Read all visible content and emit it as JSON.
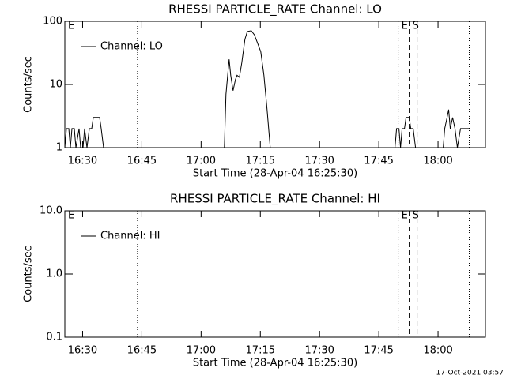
{
  "chart_data": [
    {
      "type": "line",
      "title": "RHESSI PARTICLE_RATE Channel: LO",
      "xlabel": "Start Time (28-Apr-04 16:25:30)",
      "ylabel": "Counts/sec",
      "log_y": true,
      "xlim": [
        985.5,
        1092
      ],
      "ylim": [
        1,
        100
      ],
      "yticks": [
        1,
        10,
        100
      ],
      "xticks": [
        {
          "value": 990,
          "label": "16:30"
        },
        {
          "value": 1005,
          "label": "16:45"
        },
        {
          "value": 1020,
          "label": "17:00"
        },
        {
          "value": 1035,
          "label": "17:15"
        },
        {
          "value": 1050,
          "label": "17:30"
        },
        {
          "value": 1065,
          "label": "17:45"
        },
        {
          "value": 1080,
          "label": "18:00"
        }
      ],
      "legend": "upper left",
      "series": [
        {
          "name": "Channel: LO",
          "color": "#000000",
          "x": [
            985.5,
            985.9,
            986.5,
            986.9,
            987.3,
            987.9,
            988.3,
            989.1,
            989.5,
            990.1,
            990.5,
            991.1,
            991.7,
            992.3,
            992.7,
            994.3,
            994.7,
            995.3,
            1025.9,
            1026.3,
            1027.1,
            1027.5,
            1028.1,
            1028.7,
            1029.1,
            1029.7,
            1030.3,
            1031.1,
            1031.7,
            1032.7,
            1033.5,
            1034.3,
            1035.1,
            1035.9,
            1036.7,
            1037.5,
            1069.1,
            1069.5,
            1070.1,
            1070.5,
            1070.9,
            1071.5,
            1071.9,
            1072.7,
            1073.1,
            1073.7,
            1074.3,
            1081.3,
            1081.7,
            1082.3,
            1082.7,
            1083.1,
            1083.7,
            1084.3,
            1084.9,
            1085.7,
            1087.9
          ],
          "values": [
            1,
            2,
            2,
            1,
            2,
            2,
            1,
            2,
            1,
            1,
            2,
            1,
            2,
            2,
            3,
            3,
            2,
            1,
            1,
            7,
            25,
            14,
            8,
            12,
            14,
            13,
            22,
            52,
            69,
            71,
            61,
            45,
            33,
            14,
            4,
            1,
            1,
            2,
            2,
            1,
            2,
            2,
            3,
            3,
            2,
            2,
            1,
            1,
            2,
            3,
            4,
            2,
            3,
            2,
            1,
            2,
            2
          ]
        }
      ],
      "markers": [
        {
          "x": 985.5,
          "style": "dotted",
          "label": "E"
        },
        {
          "x": 1003.9,
          "style": "dotted"
        },
        {
          "x": 1069.9,
          "style": "dotted",
          "label": "E"
        },
        {
          "x": 1072.7,
          "style": "dashed",
          "label": "S"
        },
        {
          "x": 1074.7,
          "style": "dashed"
        },
        {
          "x": 1087.9,
          "style": "dotted"
        }
      ]
    },
    {
      "type": "line",
      "title": "RHESSI PARTICLE_RATE Channel: HI",
      "xlabel": "Start Time (28-Apr-04 16:25:30)",
      "ylabel": "Counts/sec",
      "log_y": true,
      "xlim": [
        985.5,
        1092
      ],
      "ylim": [
        0.1,
        10
      ],
      "yticks": [
        {
          "value": 0.1,
          "label": "0.1"
        },
        {
          "value": 1,
          "label": "1.0"
        },
        {
          "value": 10,
          "label": "10.0"
        }
      ],
      "xticks": [
        {
          "value": 990,
          "label": "16:30"
        },
        {
          "value": 1005,
          "label": "16:45"
        },
        {
          "value": 1020,
          "label": "17:00"
        },
        {
          "value": 1035,
          "label": "17:15"
        },
        {
          "value": 1050,
          "label": "17:30"
        },
        {
          "value": 1065,
          "label": "17:45"
        },
        {
          "value": 1080,
          "label": "18:00"
        }
      ],
      "legend": "upper left",
      "series": [
        {
          "name": "Channel: HI",
          "color": "#000000",
          "x": [],
          "values": []
        }
      ],
      "markers": [
        {
          "x": 985.5,
          "style": "dotted",
          "label": "E"
        },
        {
          "x": 1003.9,
          "style": "dotted"
        },
        {
          "x": 1069.9,
          "style": "dotted",
          "label": "E"
        },
        {
          "x": 1072.7,
          "style": "dashed",
          "label": "S"
        },
        {
          "x": 1074.7,
          "style": "dashed"
        },
        {
          "x": 1087.9,
          "style": "dotted"
        }
      ]
    }
  ],
  "footer": "17-Oct-2021 03:57"
}
